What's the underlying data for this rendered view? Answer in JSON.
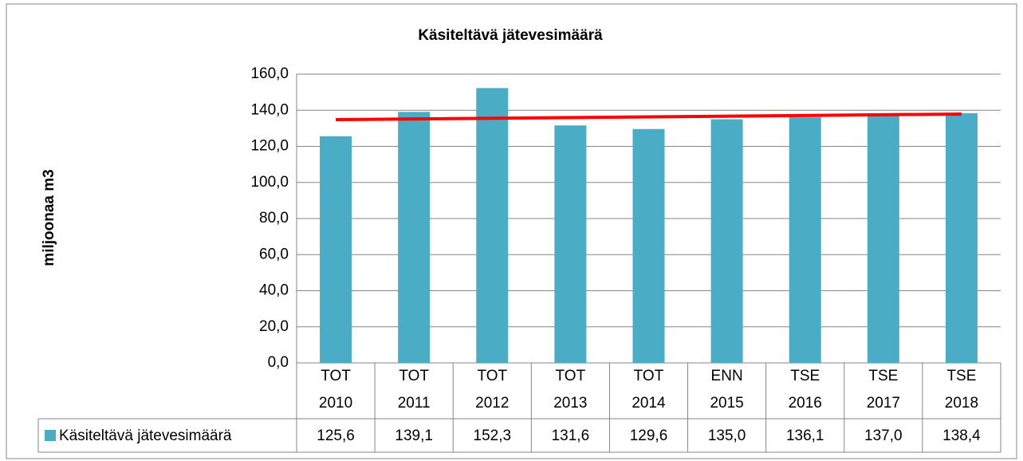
{
  "chart_data": {
    "type": "bar",
    "title": "Käsiteltävä jätevesimäärä",
    "y_label": "miljoonaa m3",
    "categories": [
      [
        "TOT",
        "2010"
      ],
      [
        "TOT",
        "2011"
      ],
      [
        "TOT",
        "2012"
      ],
      [
        "TOT",
        "2013"
      ],
      [
        "TOT",
        "2014"
      ],
      [
        "ENN",
        "2015"
      ],
      [
        "TSE",
        "2016"
      ],
      [
        "TSE",
        "2017"
      ],
      [
        "TSE",
        "2018"
      ]
    ],
    "series": [
      {
        "name": "Käsiteltävä jätevesimäärä",
        "color": "#4bacc6",
        "values": [
          125.6,
          139.1,
          152.3,
          131.6,
          129.6,
          135.0,
          136.1,
          137.0,
          138.4
        ],
        "value_labels": [
          "125,6",
          "139,1",
          "152,3",
          "131,6",
          "129,6",
          "135,0",
          "136,1",
          "137,0",
          "138,4"
        ]
      }
    ],
    "trendline": {
      "color": "#ff0000",
      "from": 134.8,
      "to": 137.9
    },
    "ylim": [
      0,
      160
    ],
    "yticks": [
      {
        "value": 0,
        "label": "0,0"
      },
      {
        "value": 20,
        "label": "20,0"
      },
      {
        "value": 40,
        "label": "40,0"
      },
      {
        "value": 60,
        "label": "60,0"
      },
      {
        "value": 80,
        "label": "80,0"
      },
      {
        "value": 100,
        "label": "100,0"
      },
      {
        "value": 120,
        "label": "120,0"
      },
      {
        "value": 140,
        "label": "140,0"
      },
      {
        "value": 160,
        "label": "160,0"
      }
    ],
    "grid": true
  }
}
